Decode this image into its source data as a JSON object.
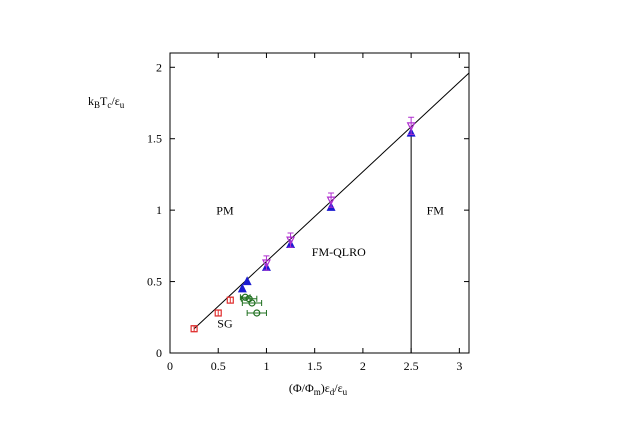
{
  "chart_data": {
    "type": "scatter",
    "x_label": [
      "(Φ/Φ",
      "m",
      ")ε",
      "d",
      "/ε",
      "u"
    ],
    "y_label": [
      "k",
      "B",
      "T",
      "c",
      "/ε",
      "u"
    ],
    "xlim": [
      0,
      3.1
    ],
    "ylim": [
      0,
      2.1
    ],
    "xticks": [
      0,
      0.5,
      1,
      1.5,
      2,
      2.5,
      3
    ],
    "yticks": [
      0,
      0.5,
      1,
      1.5,
      2
    ],
    "annotations": [
      "PM",
      "SG",
      "FM-QLRO",
      "FM"
    ],
    "series": [
      {
        "marker": "square",
        "color": "#e03030",
        "x": [
          0.25,
          0.5,
          0.625
        ],
        "values": [
          0.17,
          0.28,
          0.37
        ],
        "errors": [
          0.02,
          0.02,
          0.02
        ]
      },
      {
        "marker": "triangle",
        "color": "#1a1ad0",
        "x": [
          0.75,
          0.8,
          1,
          1.25,
          1.67,
          2.5
        ],
        "values": [
          0.45,
          0.5,
          0.6,
          0.76,
          1.02,
          1.54
        ]
      },
      {
        "marker": "down-triangle",
        "color": "#b030d0",
        "x": [
          1,
          1.25,
          1.67,
          2.5
        ],
        "values": [
          0.63,
          0.79,
          1.07,
          1.59
        ],
        "errors": [
          0.05,
          0.05,
          0.05,
          0.06
        ]
      },
      {
        "marker": "circle",
        "color": "#207020",
        "x": [
          0.78,
          0.82,
          0.85,
          0.9
        ],
        "values": [
          0.39,
          0.38,
          0.35,
          0.28
        ],
        "xerr": [
          0.05,
          0.08,
          0.1,
          0.1
        ]
      }
    ],
    "lines": [
      {
        "color": "#000000",
        "x": [
          0.25,
          3.1
        ],
        "values": [
          0.17,
          1.96
        ]
      },
      {
        "color": "#000000",
        "x": [
          2.5,
          2.5
        ],
        "values": [
          0,
          1.54
        ]
      }
    ]
  }
}
